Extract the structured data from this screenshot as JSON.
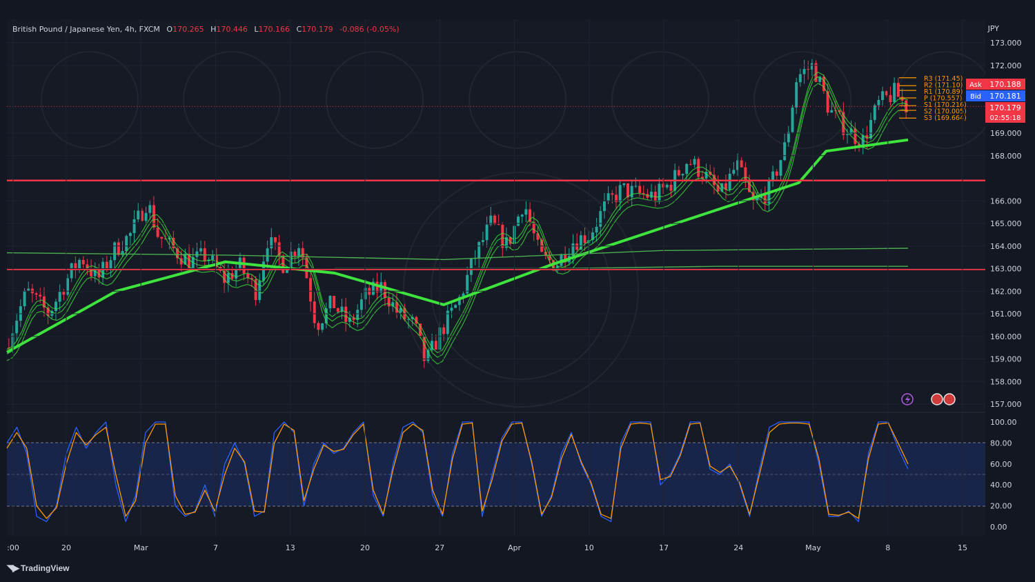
{
  "header": {
    "symbol": "British Pound / Japanese Yen, 4h, FXCM",
    "open_label": "O",
    "open": "170.265",
    "high_label": "H",
    "high": "170.446",
    "low_label": "L",
    "low": "170.166",
    "close_label": "C",
    "close": "170.179",
    "change": "-0.086 (-0.05%)"
  },
  "currency": "JPY",
  "branding": "TradingView",
  "colors": {
    "background": "#131722",
    "bull": "#26a69a",
    "bear": "#f23645",
    "ma_green": "#3ee33e",
    "ma_red": "#e02020",
    "stoch_k": "#2962ff",
    "stoch_d": "#ff9800",
    "pivot": "#ff9800",
    "ask": "#f23645",
    "bid": "#2962ff",
    "level": "#f23645"
  },
  "chart_data": [
    {
      "type": "candlestick",
      "series": [
        {
          "name": "British Pound / Japanese Yen, 4h, FXCM"
        }
      ],
      "x_tick_labels": [
        ":00",
        "20",
        "Mar",
        "7",
        "13",
        "20",
        "27",
        "Apr",
        "10",
        "17",
        "24",
        "May",
        "8",
        "15"
      ],
      "y_ticks": [
        "173.000",
        "172.000",
        "169.000",
        "168.000",
        "166.000",
        "165.000",
        "164.000",
        "163.000",
        "162.000",
        "161.000",
        "160.000",
        "159.000",
        "158.000",
        "157.000"
      ],
      "ylim": [
        156.8,
        173.3
      ],
      "price_path": [
        [
          0,
          159.5
        ],
        [
          4,
          162
        ],
        [
          8,
          161
        ],
        [
          12,
          162.8
        ],
        [
          14,
          163.5
        ],
        [
          17,
          162.5
        ],
        [
          20,
          163.8
        ],
        [
          23,
          164.5
        ],
        [
          26,
          166
        ],
        [
          28,
          164.5
        ],
        [
          31,
          163.8
        ],
        [
          34,
          163.3
        ],
        [
          37,
          163.6
        ],
        [
          40,
          162.5
        ],
        [
          43,
          163.1
        ],
        [
          46,
          162
        ],
        [
          48,
          164.3
        ],
        [
          51,
          163.2
        ],
        [
          54,
          164.2
        ],
        [
          57,
          160.5
        ],
        [
          60,
          161.5
        ],
        [
          63,
          160.5
        ],
        [
          66,
          161.8
        ],
        [
          69,
          162.2
        ],
        [
          72,
          161
        ],
        [
          75,
          160.5
        ],
        [
          77,
          158.8
        ],
        [
          80,
          160.3
        ],
        [
          83,
          161.5
        ],
        [
          86,
          163.5
        ],
        [
          89,
          165
        ],
        [
          92,
          164
        ],
        [
          95,
          166
        ],
        [
          98,
          163.5
        ],
        [
          101,
          163.2
        ],
        [
          104,
          164.2
        ],
        [
          107,
          164.5
        ],
        [
          110,
          165.8
        ],
        [
          113,
          166.5
        ],
        [
          116,
          166.3
        ],
        [
          119,
          166.2
        ],
        [
          122,
          166.8
        ],
        [
          125,
          167.8
        ],
        [
          128,
          167.2
        ],
        [
          131,
          166.2
        ],
        [
          134,
          167.6
        ],
        [
          137,
          165.8
        ],
        [
          140,
          166.5
        ],
        [
          143,
          168.5
        ],
        [
          145,
          171.5
        ],
        [
          148,
          172
        ],
        [
          151,
          170
        ],
        [
          154,
          169.2
        ],
        [
          157,
          168.6
        ],
        [
          160,
          170.3
        ],
        [
          163,
          170.8
        ],
        [
          165,
          170.18
        ]
      ],
      "moving_averages": [
        {
          "path": [
            [
              0,
              159.3
            ],
            [
              20,
              162
            ],
            [
              40,
              163.3
            ],
            [
              60,
              162.8
            ],
            [
              80,
              161.4
            ],
            [
              100,
              163.2
            ],
            [
              120,
              164.8
            ],
            [
              135,
              166
            ],
            [
              145,
              166.8
            ],
            [
              150,
              168.2
            ],
            [
              165,
              168.7
            ]
          ]
        },
        {
          "path": [
            [
              0,
              163.7
            ],
            [
              40,
              163.6
            ],
            [
              80,
              163.4
            ],
            [
              120,
              163.8
            ],
            [
              165,
              163.9
            ]
          ]
        },
        {
          "path": [
            [
              60,
              163
            ],
            [
              100,
              163
            ],
            [
              130,
              163.1
            ],
            [
              165,
              163.1
            ]
          ]
        }
      ],
      "horizontal_levels": [
        {
          "price": "166.900",
          "value": 166.9
        },
        {
          "value": 162.97
        }
      ],
      "pivots": [
        {
          "label": "R3 (171.45)",
          "value": 171.45
        },
        {
          "label": "R2 (171.10)",
          "value": 171.1
        },
        {
          "label": "R1 (170.89)",
          "value": 170.89
        },
        {
          "label": "P (170.557)",
          "value": 170.557
        },
        {
          "label": "S1 (170.216)",
          "value": 170.216
        },
        {
          "label": "S2 (170.005)",
          "value": 170.005
        },
        {
          "label": "S3 (169.664)",
          "value": 169.664
        }
      ],
      "quotes": {
        "ask_label": "Ask",
        "ask": "170.188",
        "bid_label": "Bid",
        "bid": "170.181",
        "last": "170.179",
        "countdown": "02:55:18"
      }
    },
    {
      "type": "line",
      "y_ticks": [
        "100.00",
        "80.00",
        "60.00",
        "40.00",
        "20.00",
        "0.00"
      ],
      "ylim": [
        0,
        100
      ],
      "band": [
        20,
        80
      ],
      "series": [
        {
          "values": [
            80,
            95,
            70,
            10,
            5,
            20,
            70,
            95,
            75,
            90,
            100,
            40,
            5,
            30,
            90,
            100,
            100,
            20,
            10,
            15,
            40,
            10,
            60,
            80,
            60,
            10,
            15,
            90,
            100,
            90,
            20,
            60,
            80,
            70,
            75,
            90,
            100,
            30,
            10,
            60,
            95,
            100,
            90,
            30,
            10,
            70,
            100,
            100,
            10,
            50,
            85,
            100,
            100,
            60,
            10,
            30,
            70,
            90,
            60,
            40,
            10,
            5,
            80,
            100,
            100,
            100,
            40,
            50,
            70,
            100,
            100,
            55,
            50,
            60,
            40,
            10,
            55,
            95,
            100,
            100,
            100,
            100,
            60,
            10,
            10,
            15,
            5,
            70,
            100,
            100,
            75,
            55
          ]
        },
        {
          "values": [
            75,
            90,
            75,
            20,
            8,
            18,
            60,
            90,
            78,
            88,
            95,
            50,
            10,
            25,
            80,
            98,
            98,
            30,
            12,
            14,
            35,
            15,
            50,
            75,
            62,
            15,
            14,
            80,
            98,
            92,
            25,
            55,
            78,
            72,
            74,
            88,
            98,
            35,
            12,
            55,
            90,
            98,
            92,
            35,
            12,
            65,
            98,
            99,
            15,
            45,
            82,
            98,
            99,
            62,
            12,
            28,
            65,
            88,
            62,
            42,
            12,
            8,
            75,
            98,
            99,
            98,
            45,
            48,
            68,
            98,
            99,
            58,
            52,
            58,
            42,
            12,
            50,
            90,
            98,
            99,
            99,
            98,
            65,
            12,
            11,
            14,
            8,
            65,
            98,
            99,
            80,
            60
          ]
        }
      ]
    }
  ]
}
